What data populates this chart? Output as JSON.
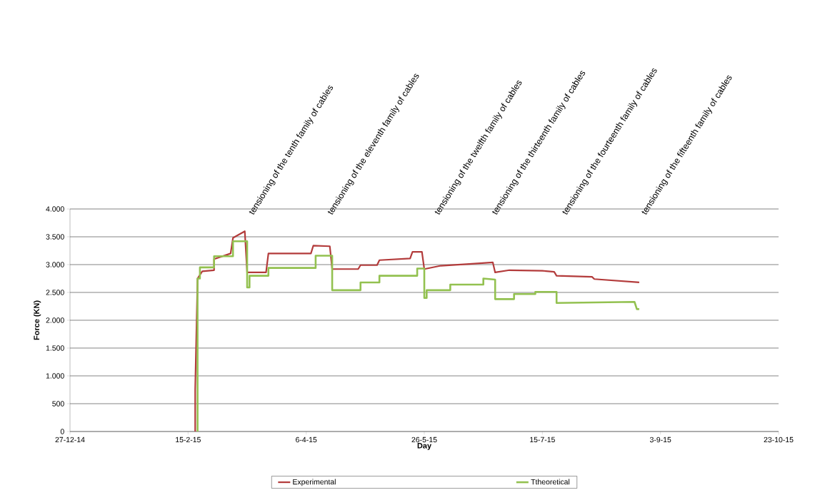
{
  "chart_data": {
    "type": "line",
    "xlabel": "Day",
    "ylabel": "Force (KN)",
    "xlim": [
      "2014-12-27",
      "2015-10-23"
    ],
    "xticks": [
      {
        "value": "2014-12-27",
        "label": "27-12-14"
      },
      {
        "value": "2015-02-15",
        "label": "15-2-15"
      },
      {
        "value": "2015-04-06",
        "label": "6-4-15"
      },
      {
        "value": "2015-05-26",
        "label": "26-5-15"
      },
      {
        "value": "2015-07-15",
        "label": "15-7-15"
      },
      {
        "value": "2015-09-03",
        "label": "3-9-15"
      },
      {
        "value": "2015-10-23",
        "label": "23-10-15"
      }
    ],
    "ylim": [
      0,
      4000
    ],
    "yticks": [
      0,
      500,
      {
        "value": 1000,
        "label": "1.000"
      },
      {
        "value": 1500,
        "label": "1.500"
      },
      {
        "value": 2000,
        "label": "2.000"
      },
      {
        "value": 2500,
        "label": "2.500"
      },
      {
        "value": 3000,
        "label": "3.000"
      },
      {
        "value": 3500,
        "label": "3.500"
      },
      {
        "value": 4000,
        "label": "4.000"
      }
    ],
    "grid": "y",
    "legend": "bottom",
    "line_style": "solid",
    "series": [
      {
        "name": "Experimental",
        "color": "#b33b3b",
        "x": [
          "2015-02-18",
          "2015-02-18",
          "2015-02-19",
          "2015-02-21",
          "2015-02-26",
          "2015-02-26",
          "2015-03-05",
          "2015-03-06",
          "2015-03-11",
          "2015-03-12",
          "2015-03-20",
          "2015-03-21",
          "2015-04-08",
          "2015-04-09",
          "2015-04-16",
          "2015-04-17",
          "2015-04-28",
          "2015-04-29",
          "2015-05-06",
          "2015-05-07",
          "2015-05-20",
          "2015-05-21",
          "2015-05-25",
          "2015-05-26",
          "2015-06-02",
          "2015-06-14",
          "2015-06-24",
          "2015-06-25",
          "2015-07-01",
          "2015-07-15",
          "2015-07-20",
          "2015-07-21",
          "2015-08-05",
          "2015-08-06",
          "2015-08-25"
        ],
        "values": [
          0,
          750,
          2750,
          2880,
          2900,
          3100,
          3200,
          3480,
          3600,
          2860,
          2860,
          3200,
          3200,
          3340,
          3330,
          2920,
          2920,
          2990,
          2990,
          3080,
          3110,
          3230,
          3230,
          2920,
          2980,
          3010,
          3040,
          2860,
          2900,
          2890,
          2870,
          2800,
          2780,
          2740,
          2680
        ]
      },
      {
        "name": "Ttheoretical",
        "color": "#93c150",
        "x": [
          "2015-02-19",
          "2015-02-19",
          "2015-02-20",
          "2015-02-20",
          "2015-02-26",
          "2015-02-26",
          "2015-03-06",
          "2015-03-06",
          "2015-03-12",
          "2015-03-12",
          "2015-03-13",
          "2015-03-13",
          "2015-03-21",
          "2015-03-21",
          "2015-04-10",
          "2015-04-10",
          "2015-04-17",
          "2015-04-17",
          "2015-04-29",
          "2015-04-29",
          "2015-05-07",
          "2015-05-07",
          "2015-05-23",
          "2015-05-23",
          "2015-05-26",
          "2015-05-26",
          "2015-05-27",
          "2015-05-27",
          "2015-06-06",
          "2015-06-06",
          "2015-06-20",
          "2015-06-20",
          "2015-06-25",
          "2015-06-25",
          "2015-07-03",
          "2015-07-03",
          "2015-07-12",
          "2015-07-12",
          "2015-07-21",
          "2015-07-21",
          "2015-08-23",
          "2015-08-24",
          "2015-08-25"
        ],
        "values": [
          0,
          2750,
          2750,
          2950,
          2950,
          3150,
          3150,
          3420,
          3420,
          2590,
          2590,
          2800,
          2800,
          2940,
          2940,
          3160,
          3160,
          2540,
          2540,
          2680,
          2680,
          2800,
          2800,
          2930,
          2930,
          2400,
          2400,
          2540,
          2540,
          2640,
          2640,
          2750,
          2730,
          2380,
          2380,
          2470,
          2470,
          2510,
          2510,
          2310,
          2330,
          2200,
          2200
        ]
      }
    ],
    "annotations": [
      "tensioning of the tenth family of cables",
      "tensioning of the eleventh family of cables",
      "tensioning of the twelfth family of cables",
      "tensioning of the thirteenth family of cables",
      "tensioning of the fourteenth family of cables",
      "tensioning of the fifteenth family of cables"
    ]
  }
}
